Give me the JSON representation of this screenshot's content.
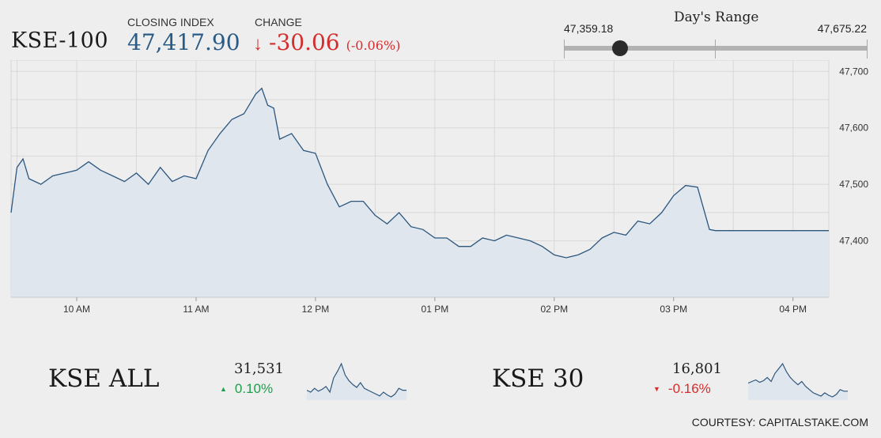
{
  "header": {
    "index_name": "KSE-100",
    "closing_label": "CLOSING INDEX",
    "closing_value": "47,417.90",
    "change_label": "CHANGE",
    "change_arrow": "↓",
    "change_value": "-30.06",
    "change_pct": "(-0.06%)"
  },
  "day_range": {
    "title": "Day's Range",
    "low": "47,359.18",
    "high": "47,675.22",
    "low_value": 47359.18,
    "high_value": 47675.22,
    "current_value": 47417.9
  },
  "colors": {
    "line": "#2c567e",
    "area": "#dfe6ee",
    "up": "#1e9e4a",
    "down": "#d42d2d",
    "value_blue": "#2a5b86"
  },
  "chart_data": {
    "type": "area",
    "x_ticks": [
      "10 AM",
      "11 AM",
      "12 PM",
      "01 PM",
      "02 PM",
      "03 PM",
      "04 PM"
    ],
    "y_ticks": [
      47400,
      47500,
      47600,
      47700
    ],
    "y_tick_labels": [
      "47,400",
      "47,500",
      "47,600",
      "47,700"
    ],
    "ylim": [
      47300,
      47720
    ],
    "xlim": [
      9.45,
      16.3
    ],
    "grid": true,
    "series": [
      {
        "x": [
          9.45,
          9.5,
          9.55,
          9.6,
          9.7,
          9.8,
          9.9,
          10.0,
          10.1,
          10.2,
          10.3,
          10.4,
          10.5,
          10.6,
          10.7,
          10.8,
          10.9,
          11.0,
          11.1,
          11.2,
          11.3,
          11.4,
          11.5,
          11.55,
          11.6,
          11.65,
          11.7,
          11.75,
          11.8,
          11.9,
          12.0,
          12.1,
          12.2,
          12.3,
          12.4,
          12.5,
          12.6,
          12.7,
          12.8,
          12.9,
          13.0,
          13.1,
          13.2,
          13.3,
          13.4,
          13.5,
          13.6,
          13.7,
          13.8,
          13.9,
          14.0,
          14.1,
          14.2,
          14.3,
          14.4,
          14.5,
          14.6,
          14.7,
          14.8,
          14.9,
          15.0,
          15.1,
          15.2,
          15.3,
          15.35,
          15.4,
          15.45,
          15.5,
          15.52,
          16.3
        ],
        "y": [
          47450,
          47530,
          47545,
          47510,
          47500,
          47515,
          47520,
          47525,
          47540,
          47525,
          47515,
          47505,
          47520,
          47500,
          47530,
          47505,
          47515,
          47510,
          47560,
          47590,
          47615,
          47625,
          47660,
          47670,
          47640,
          47635,
          47580,
          47585,
          47590,
          47560,
          47555,
          47500,
          47460,
          47470,
          47470,
          47445,
          47430,
          47450,
          47425,
          47420,
          47405,
          47405,
          47390,
          47390,
          47405,
          47400,
          47410,
          47405,
          47400,
          47390,
          47375,
          47370,
          47375,
          47385,
          47405,
          47415,
          47410,
          47435,
          47430,
          47450,
          47480,
          47498,
          47495,
          47420,
          47418,
          47418,
          47418,
          47418,
          47418,
          47418
        ]
      }
    ]
  },
  "sub_indices": [
    {
      "name": "KSE ALL",
      "value": "31,531",
      "change": "0.10%",
      "direction": "up",
      "spark": [
        42,
        40,
        44,
        41,
        43,
        46,
        40,
        55,
        62,
        70,
        58,
        52,
        48,
        45,
        50,
        44,
        42,
        40,
        38,
        36,
        40,
        37,
        35,
        38,
        44,
        42,
        42
      ]
    },
    {
      "name": "KSE 30",
      "value": "16,801",
      "change": "-0.16%",
      "direction": "down",
      "spark": [
        48,
        50,
        52,
        49,
        51,
        55,
        50,
        60,
        66,
        72,
        62,
        55,
        50,
        46,
        50,
        44,
        40,
        36,
        34,
        32,
        36,
        33,
        31,
        34,
        40,
        38,
        38
      ]
    }
  ],
  "footer": {
    "courtesy": "COURTESY: CAPITALSTAKE.COM"
  }
}
